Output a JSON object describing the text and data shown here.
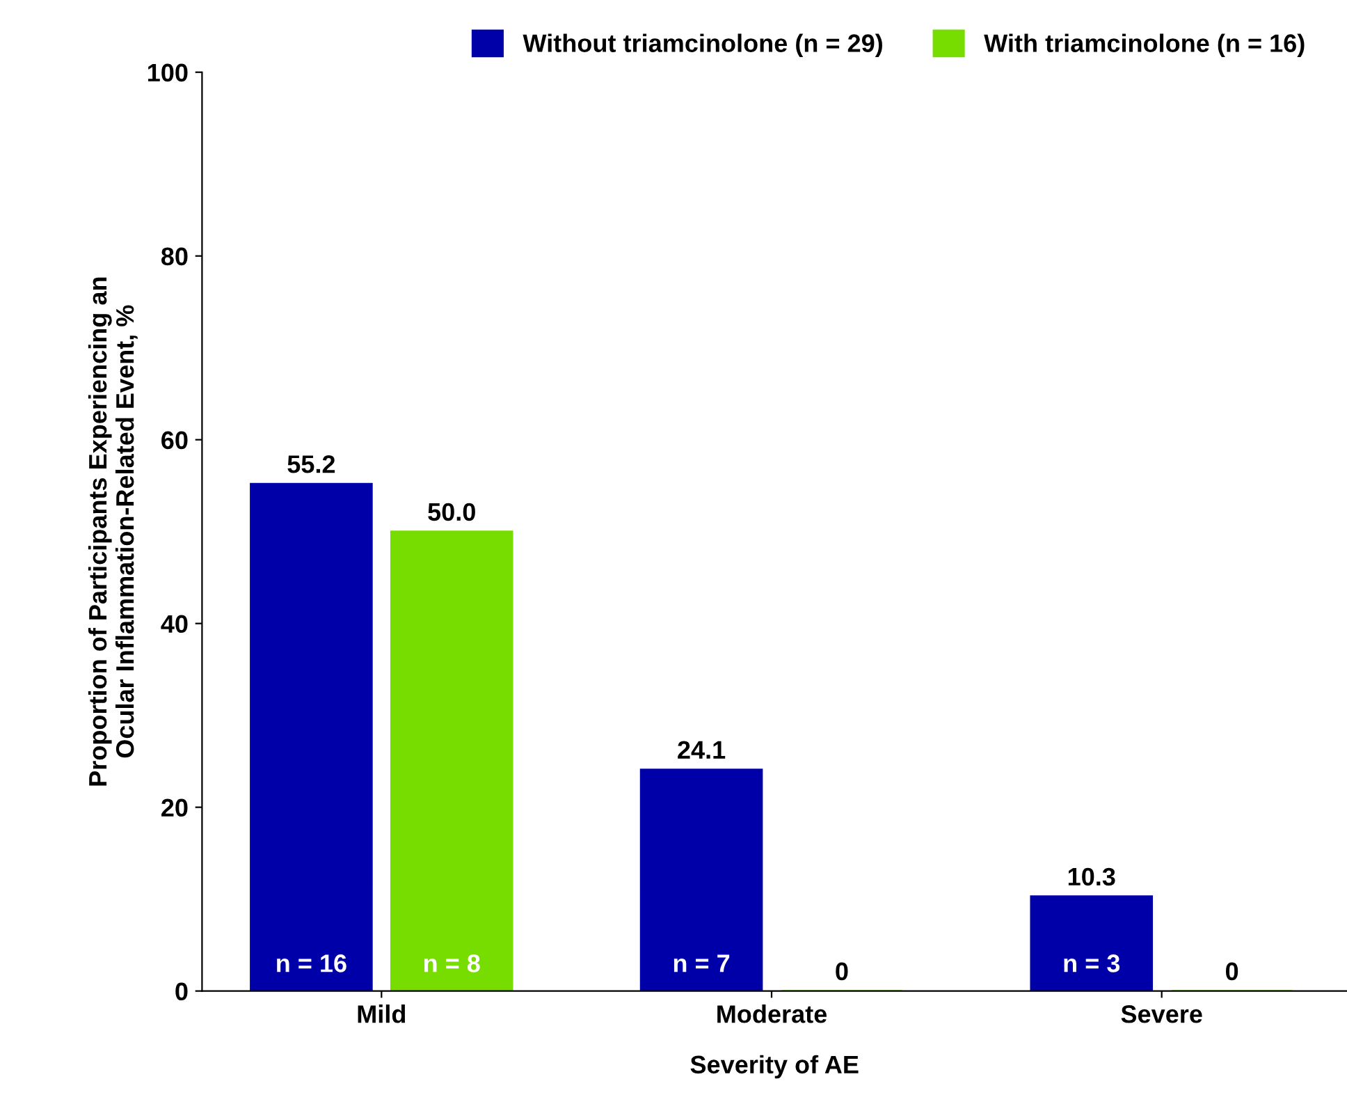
{
  "chart_data": {
    "type": "bar",
    "xlabel": "Severity of AE",
    "ylabel": "Proportion of Participants Experiencing an\nOcular Inflammation-Related Event, %",
    "categories": [
      "Mild",
      "Moderate",
      "Severe"
    ],
    "series": [
      {
        "name": "Without triamcinolone (n = 29)",
        "color": "#0000a8",
        "values": [
          55.2,
          24.1,
          10.3
        ],
        "value_labels": [
          "55.2",
          "24.1",
          "10.3"
        ]
      },
      {
        "name": "With triamcinolone (n = 16)",
        "color": "#77dd00",
        "values": [
          50.0,
          0,
          0
        ],
        "value_labels": [
          "50.0",
          "0",
          "0"
        ]
      }
    ],
    "annotations": [
      "n = 16",
      "n = 8",
      "n = 7",
      "n = 3"
    ],
    "ylim": [
      0,
      100
    ],
    "yticks": [
      0,
      20,
      40,
      60,
      80,
      100
    ],
    "grid": false,
    "legend": "top"
  }
}
